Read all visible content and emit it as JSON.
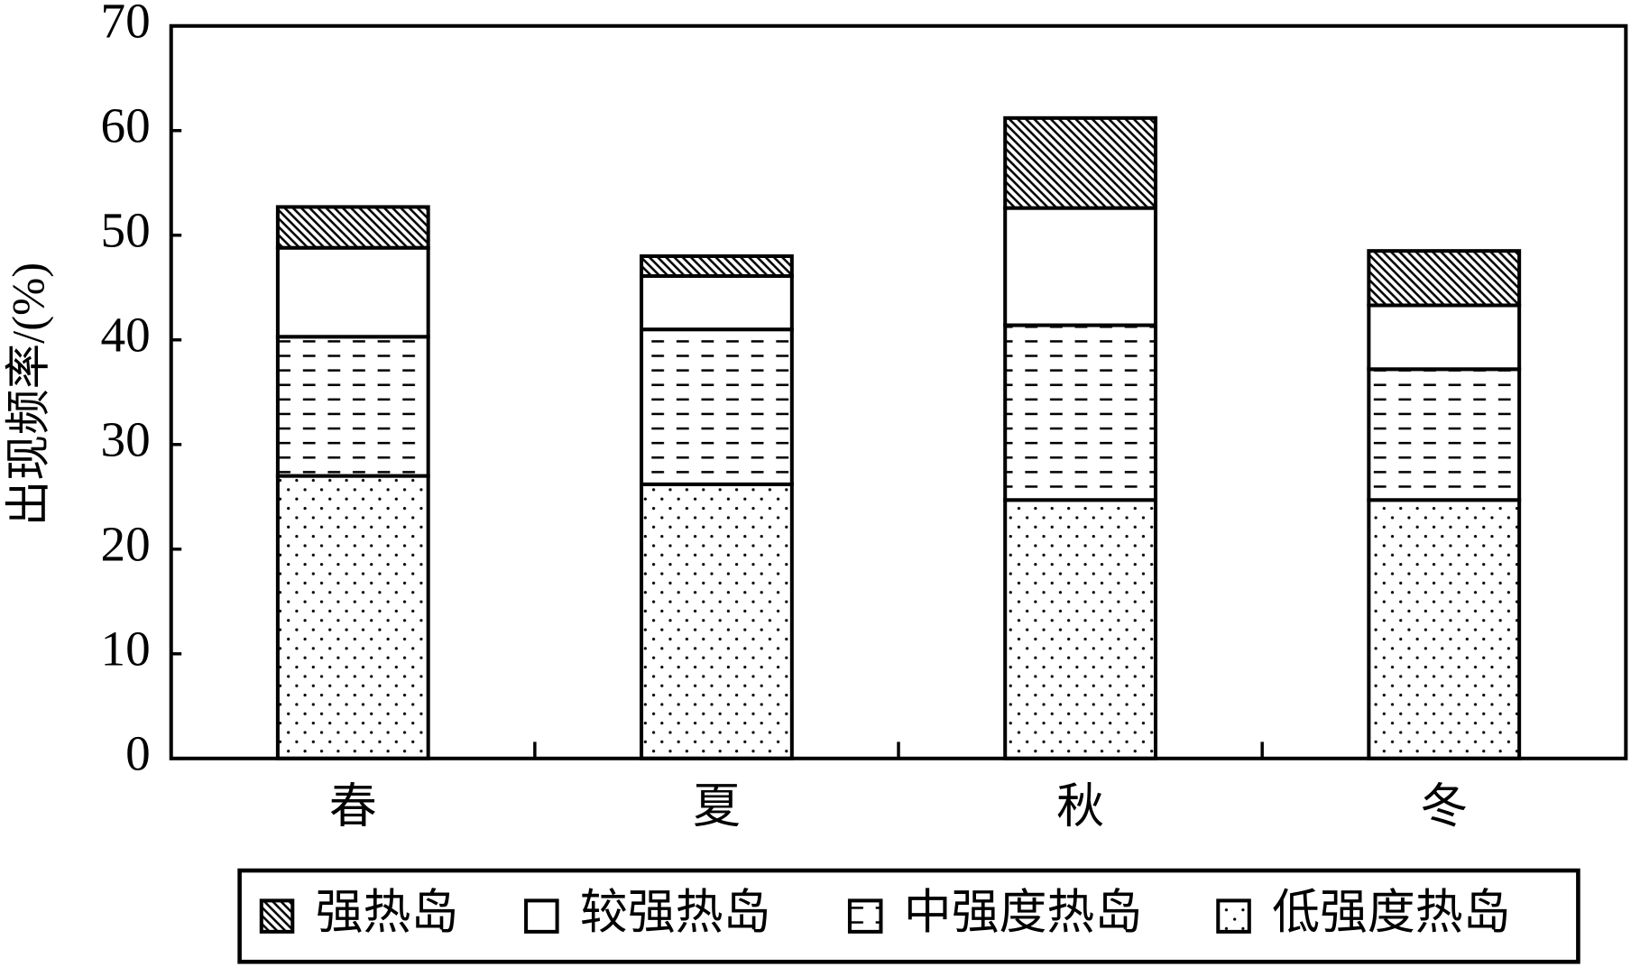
{
  "chart_data": {
    "type": "stacked_bar",
    "y_label": "出现频率/(%)",
    "categories": [
      "春",
      "夏",
      "秋",
      "冬"
    ],
    "series": [
      {
        "name": "强热岛",
        "color": "#000000",
        "pattern": "hatch",
        "values": [
          3.9,
          1.9,
          8.6,
          5.2
        ]
      },
      {
        "name": "较强热岛",
        "color": "#000000",
        "pattern": "none",
        "values": [
          8.5,
          5.1,
          11.2,
          6.1
        ]
      },
      {
        "name": "中强度热岛",
        "color": "#000000",
        "pattern": "dash",
        "values": [
          13.3,
          14.8,
          16.7,
          12.5
        ]
      },
      {
        "name": "低强度热岛",
        "color": "#000000",
        "pattern": "dot",
        "values": [
          27,
          26.2,
          24.7,
          24.7
        ]
      }
    ],
    "ylim": [
      0,
      70
    ],
    "yticks": [
      0,
      10,
      20,
      30,
      40,
      50,
      60,
      70
    ],
    "legend": "bottom"
  }
}
